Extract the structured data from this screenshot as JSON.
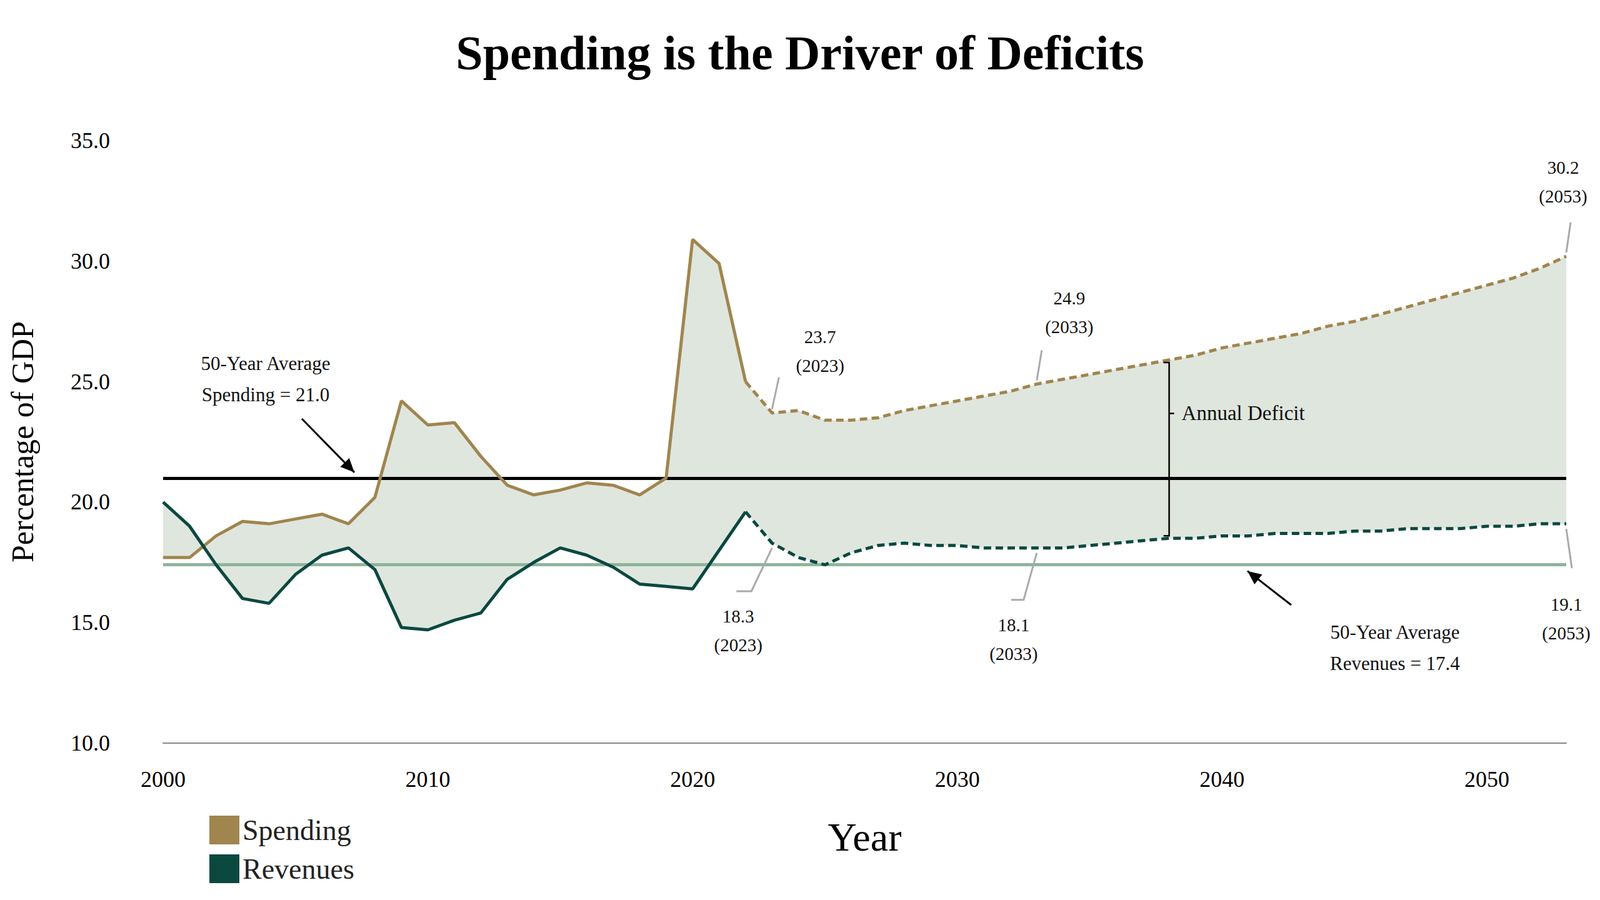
{
  "chart_data": {
    "type": "line",
    "title": "Spending is the Driver of Deficits",
    "x_label": "Year",
    "y_label": "Percentage of GDP",
    "x": [
      2000,
      2001,
      2002,
      2003,
      2004,
      2005,
      2006,
      2007,
      2008,
      2009,
      2010,
      2011,
      2012,
      2013,
      2014,
      2015,
      2016,
      2017,
      2018,
      2019,
      2020,
      2021,
      2022,
      2023,
      2024,
      2025,
      2026,
      2027,
      2028,
      2029,
      2030,
      2031,
      2032,
      2033,
      2034,
      2035,
      2036,
      2037,
      2038,
      2039,
      2040,
      2041,
      2042,
      2043,
      2044,
      2045,
      2046,
      2047,
      2048,
      2049,
      2050,
      2051,
      2052,
      2053
    ],
    "series": [
      {
        "name": "Spending",
        "color": "#a0854f",
        "line_style": "solid",
        "values": [
          17.7,
          17.7,
          18.6,
          19.2,
          19.1,
          19.3,
          19.5,
          19.1,
          20.2,
          24.2,
          23.2,
          23.3,
          21.9,
          20.7,
          20.3,
          20.5,
          20.8,
          20.7,
          20.3,
          21.0,
          30.9,
          29.9,
          25.0,
          null,
          null,
          null,
          null,
          null,
          null,
          null,
          null,
          null,
          null,
          null,
          null,
          null,
          null,
          null,
          null,
          null,
          null,
          null,
          null,
          null,
          null,
          null,
          null,
          null,
          null,
          null,
          null,
          null,
          null,
          null
        ]
      },
      {
        "name": "Spending",
        "color": "#a0854f",
        "line_style": "dashed",
        "values": [
          null,
          null,
          null,
          null,
          null,
          null,
          null,
          null,
          null,
          null,
          null,
          null,
          null,
          null,
          null,
          null,
          null,
          null,
          null,
          null,
          null,
          null,
          25.0,
          23.7,
          23.8,
          23.4,
          23.4,
          23.5,
          23.8,
          24.0,
          24.2,
          24.4,
          24.6,
          24.9,
          25.1,
          25.3,
          25.5,
          25.7,
          25.9,
          26.1,
          26.4,
          26.6,
          26.8,
          27.0,
          27.3,
          27.5,
          27.8,
          28.1,
          28.4,
          28.7,
          29.0,
          29.3,
          29.7,
          30.2
        ],
        "annotations": [
          {
            "x": 2023,
            "y": 23.7,
            "label": [
              "23.7",
              "(2023)"
            ]
          },
          {
            "x": 2033,
            "y": 24.9,
            "label": [
              "24.9",
              "(2033)"
            ]
          },
          {
            "x": 2053,
            "y": 30.2,
            "label": [
              "30.2",
              "(2053)"
            ]
          }
        ]
      },
      {
        "name": "Revenues",
        "color": "#0b4840",
        "line_style": "solid",
        "values": [
          20.0,
          19.0,
          17.4,
          16.0,
          15.8,
          17.0,
          17.8,
          18.1,
          17.2,
          14.8,
          14.7,
          15.1,
          15.4,
          16.8,
          17.5,
          18.1,
          17.8,
          17.3,
          16.6,
          16.5,
          16.4,
          18.0,
          19.6,
          null,
          null,
          null,
          null,
          null,
          null,
          null,
          null,
          null,
          null,
          null,
          null,
          null,
          null,
          null,
          null,
          null,
          null,
          null,
          null,
          null,
          null,
          null,
          null,
          null,
          null,
          null,
          null,
          null,
          null,
          null
        ]
      },
      {
        "name": "Revenues",
        "color": "#0b4840",
        "line_style": "dashed",
        "values": [
          null,
          null,
          null,
          null,
          null,
          null,
          null,
          null,
          null,
          null,
          null,
          null,
          null,
          null,
          null,
          null,
          null,
          null,
          null,
          null,
          null,
          null,
          19.6,
          18.3,
          17.7,
          17.4,
          17.9,
          18.2,
          18.3,
          18.2,
          18.2,
          18.1,
          18.1,
          18.1,
          18.1,
          18.2,
          18.3,
          18.4,
          18.5,
          18.5,
          18.6,
          18.6,
          18.7,
          18.7,
          18.7,
          18.8,
          18.8,
          18.9,
          18.9,
          18.9,
          19.0,
          19.0,
          19.1,
          19.1
        ],
        "annotations": [
          {
            "x": 2023,
            "y": 18.3,
            "label": [
              "18.3",
              "(2023)"
            ]
          },
          {
            "x": 2033,
            "y": 18.1,
            "label": [
              "18.1",
              "(2033)"
            ]
          },
          {
            "x": 2053,
            "y": 19.1,
            "label": [
              "19.1",
              "(2053)"
            ]
          }
        ]
      }
    ],
    "reference_lines": [
      {
        "value": 21.0,
        "color": "#000000",
        "label": [
          "50-Year Average",
          "Spending = 21.0"
        ]
      },
      {
        "value": 17.4,
        "color": "#8db59b",
        "label": [
          "50-Year Average",
          "Revenues = 17.4"
        ]
      }
    ],
    "annotations": [
      {
        "label": "Annual Deficit"
      }
    ],
    "xlim": [
      2000,
      2053
    ],
    "xticks": [
      2000,
      2010,
      2020,
      2030,
      2040,
      2050
    ],
    "ylim": [
      10,
      35
    ],
    "yticks": [
      {
        "value": 10,
        "label": "10.0"
      },
      {
        "value": 15,
        "label": "15.0"
      },
      {
        "value": 20,
        "label": "20.0"
      },
      {
        "value": 25,
        "label": "25.0"
      },
      {
        "value": 30,
        "label": "30.0"
      },
      {
        "value": 35,
        "label": "35.0"
      }
    ],
    "grid": false,
    "legend": "lower left"
  }
}
